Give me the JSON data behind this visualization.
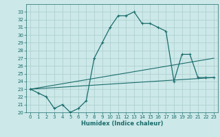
{
  "xlabel": "Humidex (Indice chaleur)",
  "ylabel": "",
  "bg_color": "#cce8e8",
  "grid_color": "#aacccc",
  "line_color": "#1a6b6b",
  "xlim": [
    -0.5,
    23.5
  ],
  "ylim": [
    20,
    34
  ],
  "yticks": [
    20,
    21,
    22,
    23,
    24,
    25,
    26,
    27,
    28,
    29,
    30,
    31,
    32,
    33
  ],
  "xticks": [
    0,
    1,
    2,
    3,
    4,
    5,
    6,
    7,
    8,
    9,
    10,
    11,
    12,
    13,
    14,
    15,
    16,
    17,
    18,
    19,
    20,
    21,
    22,
    23
  ],
  "main_x": [
    0,
    1,
    2,
    3,
    4,
    5,
    6,
    7,
    8,
    9,
    10,
    11,
    12,
    13,
    14,
    15,
    16,
    17,
    18,
    19,
    20,
    21,
    22,
    23
  ],
  "main_y": [
    23,
    22.5,
    22,
    20.5,
    21,
    20,
    20.5,
    21.5,
    27,
    29,
    31,
    32.5,
    32.5,
    33,
    31.5,
    31.5,
    31,
    30.5,
    24,
    27.5,
    27.5,
    24.5,
    24.5,
    24.5
  ],
  "line1_x": [
    0,
    23
  ],
  "line1_y": [
    23,
    27
  ],
  "line2_x": [
    0,
    23
  ],
  "line2_y": [
    23,
    24.5
  ]
}
